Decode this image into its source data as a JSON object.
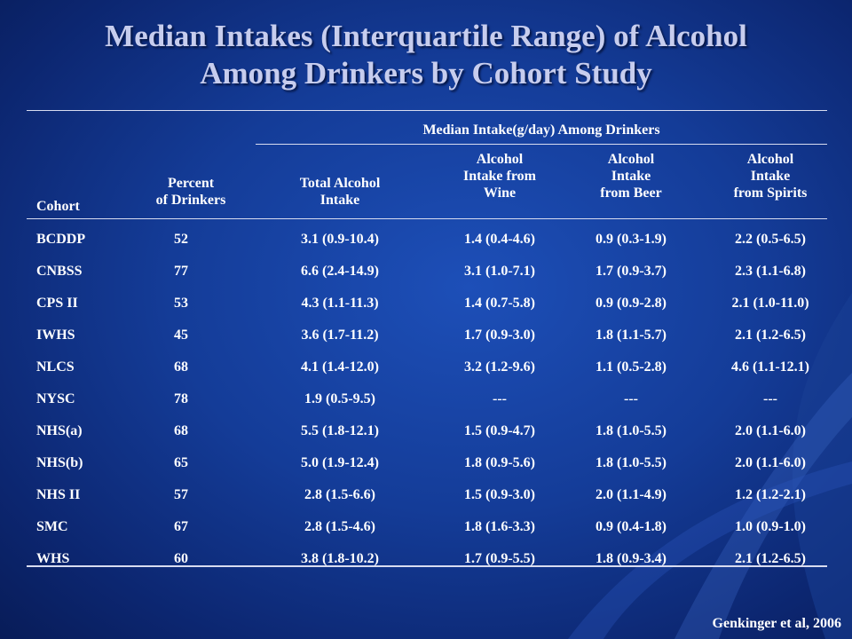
{
  "title": {
    "line1": "Median Intakes (Interquartile Range) of Alcohol",
    "line2": "Among Drinkers by Cohort Study"
  },
  "table": {
    "group_header": "Median Intake(g/day) Among Drinkers",
    "columns": {
      "cohort": "Cohort",
      "pct_line1": "Percent",
      "pct_line2": "of Drinkers",
      "total_line1": "Total Alcohol",
      "total_line2": "Intake",
      "wine_line1": "Alcohol",
      "wine_line2": "Intake from",
      "wine_line3": "Wine",
      "beer_line1": "Alcohol",
      "beer_line2": "Intake",
      "beer_line3": "from Beer",
      "spirits_line1": "Alcohol",
      "spirits_line2": "Intake",
      "spirits_line3": "from Spirits"
    },
    "rows": [
      {
        "cohort": "BCDDP",
        "pct": "52",
        "total": "3.1 (0.9-10.4)",
        "wine": "1.4 (0.4-4.6)",
        "beer": "0.9  (0.3-1.9)",
        "spirits": "2.2 (0.5-6.5)"
      },
      {
        "cohort": "CNBSS",
        "pct": "77",
        "total": "6.6 (2.4-14.9)",
        "wine": "3.1 (1.0-7.1)",
        "beer": "1.7 (0.9-3.7)",
        "spirits": "2.3 (1.1-6.8)"
      },
      {
        "cohort": "CPS II",
        "pct": "53",
        "total": "4.3 (1.1-11.3)",
        "wine": "1.4 (0.7-5.8)",
        "beer": "0.9 (0.9-2.8)",
        "spirits": "2.1 (1.0-11.0)"
      },
      {
        "cohort": "IWHS",
        "pct": "45",
        "total": "3.6 (1.7-11.2)",
        "wine": "1.7 (0.9-3.0)",
        "beer": "1.8 (1.1-5.7)",
        "spirits": "2.1 (1.2-6.5)"
      },
      {
        "cohort": "NLCS",
        "pct": "68",
        "total": "4.1 (1.4-12.0)",
        "wine": "3.2 (1.2-9.6)",
        "beer": "1.1 (0.5-2.8)",
        "spirits": "4.6 (1.1-12.1)"
      },
      {
        "cohort": "NYSC",
        "pct": "78",
        "total": "1.9 (0.5-9.5)",
        "wine": "---",
        "beer": "---",
        "spirits": "---"
      },
      {
        "cohort": "NHS(a)",
        "pct": "68",
        "total": "5.5 (1.8-12.1)",
        "wine": "1.5 (0.9-4.7)",
        "beer": "1.8 (1.0-5.5)",
        "spirits": "2.0 (1.1-6.0)"
      },
      {
        "cohort": "NHS(b)",
        "pct": "65",
        "total": "5.0 (1.9-12.4)",
        "wine": "1.8 (0.9-5.6)",
        "beer": "1.8 (1.0-5.5)",
        "spirits": "2.0 (1.1-6.0)"
      },
      {
        "cohort": "NHS II",
        "pct": "57",
        "total": "2.8 (1.5-6.6)",
        "wine": "1.5 (0.9-3.0)",
        "beer": "2.0 (1.1-4.9)",
        "spirits": "1.2 (1.2-2.1)"
      },
      {
        "cohort": "SMC",
        "pct": "67",
        "total": "2.8 (1.5-4.6)",
        "wine": "1.8 (1.6-3.3)",
        "beer": "0.9 (0.4-1.8)",
        "spirits": "1.0 (0.9-1.0)"
      },
      {
        "cohort": "WHS",
        "pct": "60",
        "total": "3.8 (1.8-10.2)",
        "wine": "1.7 (0.9-5.5)",
        "beer": "1.8 (0.9-3.4)",
        "spirits": "2.1 (1.2-6.5)"
      }
    ]
  },
  "citation": "Genkinger et al, 2006",
  "colors": {
    "background": "#143c98",
    "title": "#c7cdee",
    "text": "#ffffff"
  }
}
